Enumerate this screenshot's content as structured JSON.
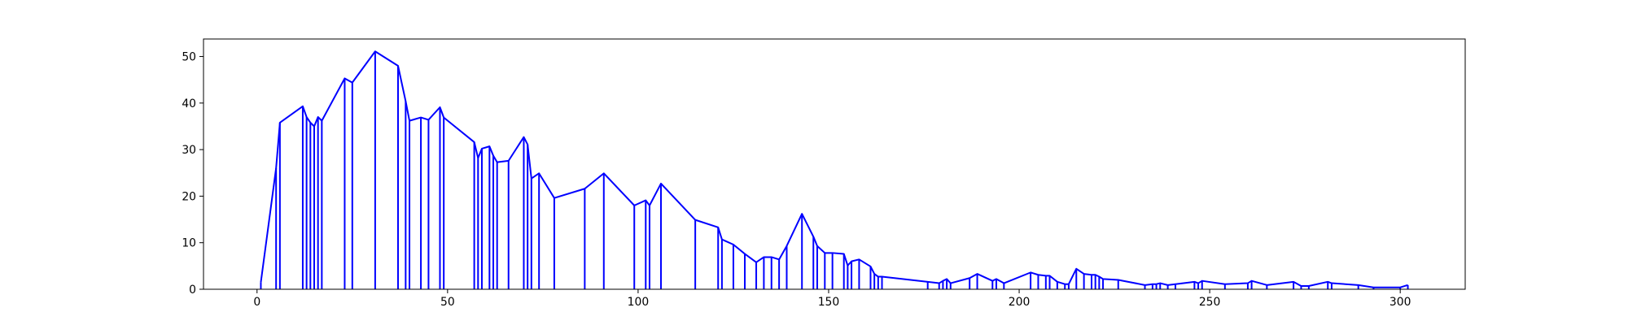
{
  "chart_data": {
    "type": "stem",
    "color": "#0000ff",
    "x": [
      1,
      5,
      6,
      12,
      13,
      14,
      15,
      16,
      17,
      23,
      25,
      31,
      37,
      39,
      40,
      43,
      45,
      48,
      49,
      57,
      58,
      59,
      61,
      62,
      63,
      66,
      70,
      71,
      72,
      74,
      78,
      86,
      91,
      99,
      102,
      103,
      106,
      115,
      121,
      122,
      125,
      128,
      131,
      133,
      135,
      137,
      139,
      143,
      146,
      147,
      149,
      151,
      154,
      155,
      156,
      158,
      161,
      162,
      163,
      164,
      176,
      179,
      180,
      181,
      182,
      187,
      189,
      193,
      194,
      196,
      203,
      205,
      207,
      208,
      210,
      212,
      213,
      215,
      217,
      219,
      220,
      221,
      222,
      226,
      233,
      235,
      236,
      237,
      239,
      241,
      246,
      247,
      248,
      254,
      260,
      261,
      265,
      272,
      274,
      276,
      281,
      282,
      289,
      293,
      300,
      302
    ],
    "values": [
      1.5,
      26,
      35.8,
      39.3,
      37,
      35.8,
      35,
      37,
      36.2,
      45.3,
      44.4,
      51.1,
      48,
      40.4,
      36.2,
      36.9,
      36.4,
      39.1,
      36.9,
      31.6,
      28.2,
      30.2,
      30.7,
      28.7,
      27.3,
      27.6,
      32.7,
      31.1,
      23.8,
      24.9,
      19.6,
      21.6,
      24.9,
      18,
      19.1,
      18,
      22.7,
      14.9,
      13.3,
      10.7,
      9.6,
      7.6,
      5.8,
      6.9,
      6.9,
      6.4,
      9.3,
      16.2,
      11.3,
      9.3,
      7.8,
      7.8,
      7.6,
      5.1,
      6,
      6.4,
      4.9,
      3.3,
      2.7,
      2.7,
      1.6,
      1.3,
      1.8,
      2.2,
      1.3,
      2.4,
      3.3,
      1.8,
      2.2,
      1.3,
      3.6,
      3.1,
      2.9,
      2.9,
      1.6,
      1.1,
      1.1,
      4.4,
      3.3,
      3.1,
      3.1,
      2.7,
      2.2,
      2,
      0.9,
      1.1,
      1.1,
      1.3,
      0.9,
      1.1,
      1.6,
      1.3,
      1.8,
      1.1,
      1.3,
      1.8,
      0.9,
      1.6,
      0.7,
      0.7,
      1.6,
      1.3,
      0.9,
      0.4,
      0.4,
      0.9
    ],
    "xlim": [
      -14.05,
      317.05
    ],
    "ylim": [
      0,
      53.76
    ],
    "xticks": [
      0,
      50,
      100,
      150,
      200,
      250,
      300
    ],
    "yticks": [
      0,
      10,
      20,
      30,
      40,
      50
    ]
  }
}
